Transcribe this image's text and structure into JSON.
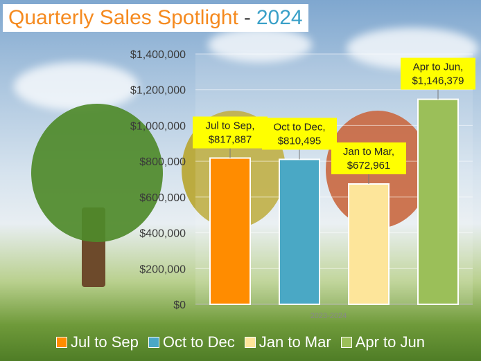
{
  "title": {
    "main": "Quarterly Sales Spotlight",
    "separator": "-",
    "year": "2024"
  },
  "chart_data": {
    "type": "bar",
    "categories": [
      "2023-2024"
    ],
    "series": [
      {
        "name": "Jul to Sep",
        "value": 817887,
        "label": "Jul to Sep,|$817,887",
        "color": "#ff8c00"
      },
      {
        "name": "Oct to Dec",
        "value": 810495,
        "label": "Oct to Dec,|$810,495",
        "color": "#4aa8c5"
      },
      {
        "name": "Jan to Mar",
        "value": 672961,
        "label": "Jan to Mar,|$672,961",
        "color": "#fde59a"
      },
      {
        "name": "Apr to Jun",
        "value": 1146379,
        "label": "Apr to Jun,|$1,146,379",
        "color": "#9bbf59"
      }
    ],
    "ylim": [
      0,
      1400000
    ],
    "yticks": [
      "$0",
      "$200,000",
      "$400,000",
      "$600,000",
      "$800,000",
      "$1,000,000",
      "$1,200,000",
      "$1,400,000"
    ],
    "xlabel": "2023-2024",
    "grid": true,
    "legend_position": "bottom"
  }
}
